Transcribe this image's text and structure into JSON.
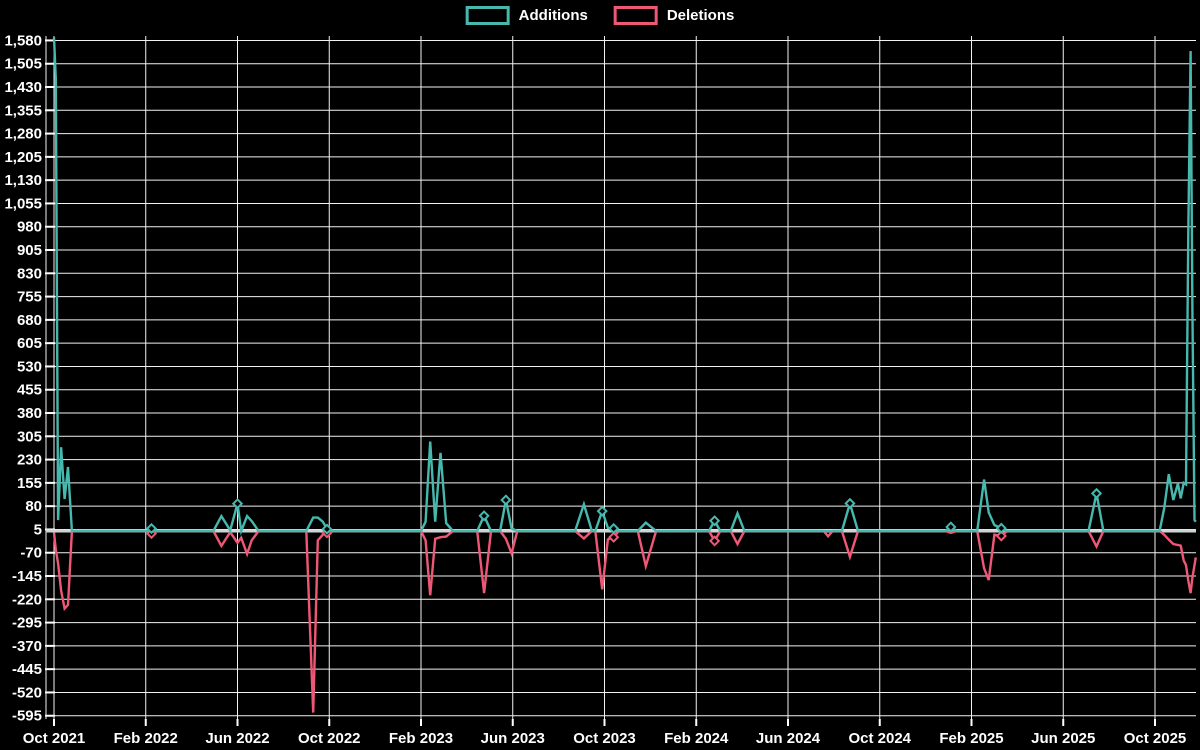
{
  "colors": {
    "background": "#000000",
    "grid": "#f2f2f2",
    "zero_line": "#ccd4d6",
    "text": "#ffffff",
    "additions": "#46b8ae",
    "deletions": "#ee5776"
  },
  "legend": {
    "items": [
      {
        "label": "Additions",
        "color": "#46b8ae"
      },
      {
        "label": "Deletions",
        "color": "#ee5776"
      }
    ]
  },
  "chart_data": {
    "type": "line",
    "title": "",
    "xlabel": "",
    "ylabel": "",
    "grid": true,
    "legend_position": "top-center",
    "x_axis": {
      "unit": "months offset from Oct 2021 (weekly samples)",
      "tick_labels": [
        "Oct 2021",
        "Feb 2022",
        "Jun 2022",
        "Oct 2022",
        "Feb 2023",
        "Jun 2023",
        "Oct 2023",
        "Feb 2024",
        "Jun 2024",
        "Oct 2024",
        "Feb 2025",
        "Jun 2025",
        "Oct 2025"
      ],
      "tick_month_offsets": [
        0,
        4,
        8,
        12,
        16,
        20,
        24,
        28,
        32,
        36,
        40,
        44,
        48
      ]
    },
    "y_axis": {
      "max": 1580,
      "min": -595,
      "step": 75,
      "tick_labels": [
        "1,580",
        "1,505",
        "1,430",
        "1,355",
        "1,280",
        "1,205",
        "1,130",
        "1,055",
        "980",
        "905",
        "830",
        "755",
        "680",
        "605",
        "530",
        "455",
        "380",
        "305",
        "230",
        "155",
        "80",
        "5",
        "-70",
        "-145",
        "-220",
        "-295",
        "-370",
        "-445",
        "-520",
        "-595"
      ]
    },
    "ylim": [
      -604,
      1599
    ],
    "series": [
      {
        "name": "Additions",
        "color": "#46b8ae"
      },
      {
        "name": "Deletions",
        "color": "#ee5776"
      }
    ],
    "points_format": [
      "month_offset",
      "additions",
      "deletions",
      "marker_flags(a=additions,d=deletions)"
    ],
    "points": [
      [
        0.0,
        1590,
        -5,
        ""
      ],
      [
        0.08,
        1457,
        -60,
        ""
      ],
      [
        0.18,
        35,
        -105,
        ""
      ],
      [
        0.31,
        270,
        -192,
        ""
      ],
      [
        0.46,
        103,
        -250,
        ""
      ],
      [
        0.61,
        206,
        -238,
        ""
      ],
      [
        0.78,
        0,
        0,
        ""
      ],
      [
        4.05,
        0,
        0,
        ""
      ],
      [
        4.25,
        8,
        -8,
        "ad"
      ],
      [
        4.45,
        0,
        0,
        ""
      ],
      [
        6.95,
        0,
        0,
        ""
      ],
      [
        7.3,
        48,
        -48,
        ""
      ],
      [
        7.68,
        2,
        -4,
        ""
      ],
      [
        8.0,
        88,
        -38,
        "a"
      ],
      [
        8.16,
        0,
        -22,
        ""
      ],
      [
        8.42,
        48,
        -74,
        ""
      ],
      [
        8.62,
        32,
        -30,
        ""
      ],
      [
        8.92,
        0,
        0,
        ""
      ],
      [
        11.0,
        0,
        0,
        ""
      ],
      [
        11.3,
        43,
        -585,
        ""
      ],
      [
        11.5,
        43,
        -30,
        ""
      ],
      [
        11.72,
        30,
        -12,
        ""
      ],
      [
        11.9,
        6,
        -6,
        "ad"
      ],
      [
        12.05,
        0,
        0,
        ""
      ],
      [
        16.0,
        0,
        0,
        ""
      ],
      [
        16.2,
        30,
        -30,
        ""
      ],
      [
        16.4,
        288,
        -207,
        ""
      ],
      [
        16.62,
        30,
        -25,
        ""
      ],
      [
        16.85,
        252,
        -20,
        ""
      ],
      [
        17.1,
        25,
        -18,
        ""
      ],
      [
        17.4,
        0,
        0,
        ""
      ],
      [
        18.45,
        0,
        0,
        ""
      ],
      [
        18.75,
        49,
        -200,
        "a"
      ],
      [
        19.05,
        0,
        0,
        ""
      ],
      [
        19.45,
        0,
        0,
        ""
      ],
      [
        19.7,
        100,
        -25,
        "a"
      ],
      [
        19.95,
        8,
        -72,
        ""
      ],
      [
        20.2,
        0,
        0,
        ""
      ],
      [
        22.72,
        0,
        0,
        ""
      ],
      [
        23.1,
        86,
        -24,
        ""
      ],
      [
        23.45,
        0,
        0,
        ""
      ],
      [
        23.6,
        0,
        0,
        ""
      ],
      [
        23.9,
        64,
        -188,
        "a"
      ],
      [
        24.15,
        10,
        -27,
        ""
      ],
      [
        24.4,
        8,
        -20,
        "ad"
      ],
      [
        24.62,
        0,
        0,
        ""
      ],
      [
        25.45,
        0,
        0,
        ""
      ],
      [
        25.8,
        27,
        -113,
        ""
      ],
      [
        26.25,
        0,
        0,
        ""
      ],
      [
        28.55,
        0,
        0,
        ""
      ],
      [
        28.8,
        33,
        -32,
        "ad"
      ],
      [
        29.05,
        0,
        0,
        ""
      ],
      [
        29.5,
        0,
        0,
        ""
      ],
      [
        29.8,
        57,
        -42,
        ""
      ],
      [
        30.1,
        0,
        0,
        ""
      ],
      [
        33.55,
        0,
        0,
        ""
      ],
      [
        33.75,
        0,
        -17,
        ""
      ],
      [
        33.95,
        0,
        0,
        ""
      ],
      [
        34.35,
        0,
        0,
        ""
      ],
      [
        34.7,
        89,
        -83,
        "a"
      ],
      [
        35.05,
        0,
        0,
        ""
      ],
      [
        38.85,
        0,
        0,
        ""
      ],
      [
        39.1,
        13,
        -6,
        "a"
      ],
      [
        39.35,
        0,
        0,
        ""
      ],
      [
        40.25,
        0,
        0,
        ""
      ],
      [
        40.55,
        166,
        -120,
        ""
      ],
      [
        40.75,
        60,
        -158,
        ""
      ],
      [
        41.0,
        19,
        -12,
        ""
      ],
      [
        41.3,
        9,
        -16,
        "ad"
      ],
      [
        41.55,
        0,
        0,
        ""
      ],
      [
        45.1,
        0,
        0,
        ""
      ],
      [
        45.45,
        121,
        -50,
        "a"
      ],
      [
        45.75,
        0,
        0,
        ""
      ],
      [
        48.2,
        0,
        0,
        ""
      ],
      [
        48.4,
        73,
        -12,
        ""
      ],
      [
        48.6,
        183,
        -28,
        ""
      ],
      [
        48.8,
        100,
        -42,
        ""
      ],
      [
        49.0,
        153,
        -45,
        ""
      ],
      [
        49.12,
        105,
        -47,
        ""
      ],
      [
        49.25,
        155,
        -95,
        ""
      ],
      [
        49.35,
        150,
        -110,
        ""
      ],
      [
        49.45,
        962,
        -160,
        ""
      ],
      [
        49.55,
        1546,
        -200,
        ""
      ],
      [
        49.63,
        715,
        -150,
        ""
      ],
      [
        49.72,
        35,
        -110,
        ""
      ],
      [
        49.78,
        30,
        -85,
        ""
      ]
    ]
  }
}
